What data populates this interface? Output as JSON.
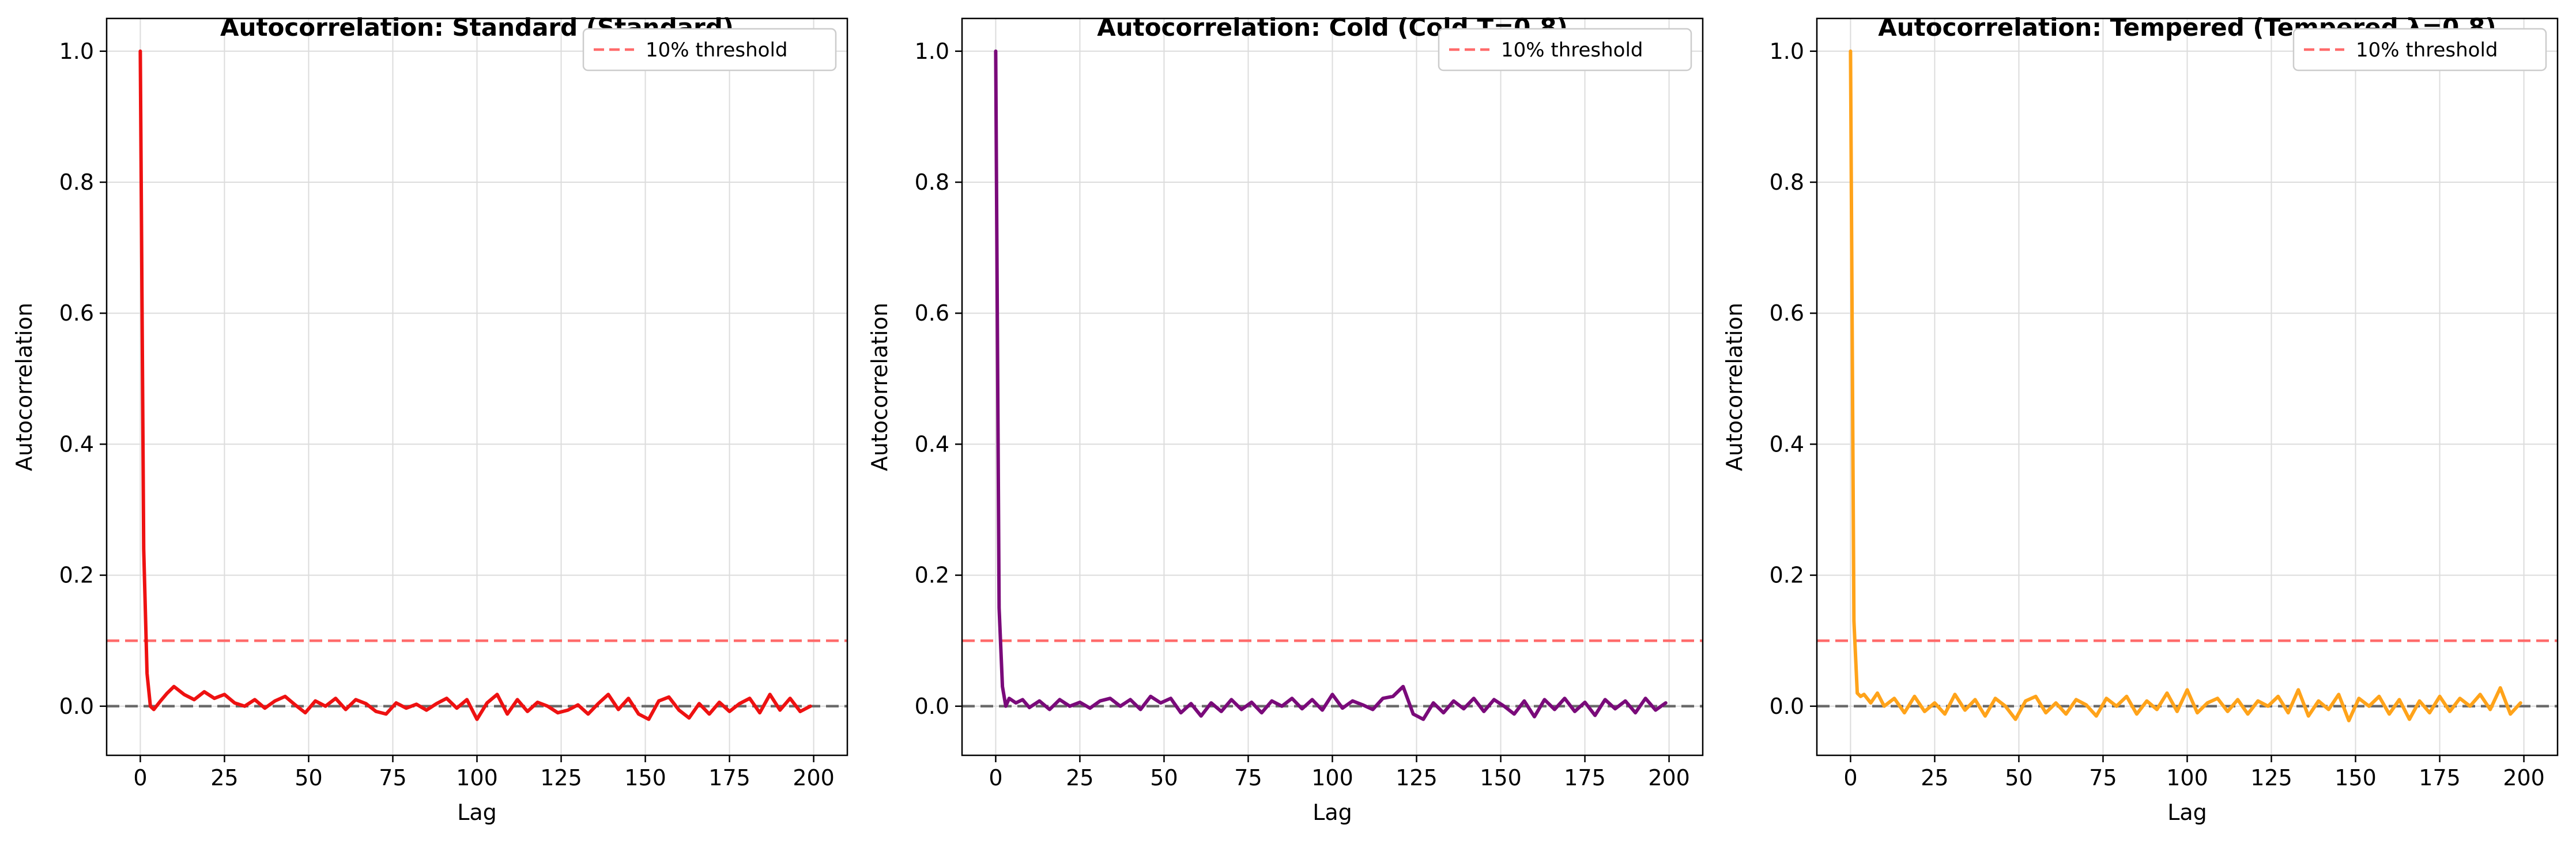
{
  "chart_data": [
    {
      "type": "line",
      "title": "Autocorrelation: Standard (Standard)",
      "xlabel": "Lag",
      "ylabel": "Autocorrelation",
      "xlim": [
        -10,
        210
      ],
      "ylim": [
        -0.075,
        1.05
      ],
      "xticks": [
        0,
        25,
        50,
        75,
        100,
        125,
        150,
        175,
        200
      ],
      "yticks": [
        0.0,
        0.2,
        0.4,
        0.6,
        0.8,
        1.0
      ],
      "xtick_labels": [
        "0",
        "25",
        "50",
        "75",
        "100",
        "125",
        "150",
        "175",
        "200"
      ],
      "ytick_labels": [
        "0.0",
        "0.2",
        "0.4",
        "0.6",
        "0.8",
        "1.0"
      ],
      "grid": true,
      "legend": {
        "position": "top-right",
        "entries": [
          {
            "name": "10% threshold",
            "color": "#ff6b6b",
            "style": "dashed"
          }
        ]
      },
      "threshold": 0.1,
      "zero_line": 0.0,
      "series": [
        {
          "color": "#ee1111",
          "x": [
            0,
            1,
            2,
            3,
            4,
            6,
            8,
            10,
            13,
            16,
            19,
            22,
            25,
            28,
            31,
            34,
            37,
            40,
            43,
            46,
            49,
            52,
            55,
            58,
            61,
            64,
            67,
            70,
            73,
            76,
            79,
            82,
            85,
            88,
            91,
            94,
            97,
            100,
            103,
            106,
            109,
            112,
            115,
            118,
            121,
            124,
            127,
            130,
            133,
            136,
            139,
            142,
            145,
            148,
            151,
            154,
            157,
            160,
            163,
            166,
            169,
            172,
            175,
            178,
            181,
            184,
            187,
            190,
            193,
            196,
            199
          ],
          "values": [
            1.0,
            0.24,
            0.05,
            0.0,
            -0.005,
            0.008,
            0.02,
            0.03,
            0.018,
            0.01,
            0.022,
            0.012,
            0.018,
            0.005,
            0.0,
            0.01,
            -0.003,
            0.008,
            0.015,
            0.002,
            -0.01,
            0.008,
            0.0,
            0.012,
            -0.005,
            0.01,
            0.004,
            -0.008,
            -0.012,
            0.005,
            -0.003,
            0.003,
            -0.006,
            0.004,
            0.012,
            -0.003,
            0.01,
            -0.02,
            0.005,
            0.018,
            -0.012,
            0.01,
            -0.008,
            0.006,
            0.0,
            -0.01,
            -0.006,
            0.002,
            -0.012,
            0.004,
            0.018,
            -0.005,
            0.012,
            -0.012,
            -0.02,
            0.008,
            0.014,
            -0.006,
            -0.018,
            0.004,
            -0.012,
            0.006,
            -0.008,
            0.004,
            0.012,
            -0.01,
            0.018,
            -0.006,
            0.012,
            -0.008,
            0.0
          ]
        }
      ]
    },
    {
      "type": "line",
      "title": "Autocorrelation: Cold (Cold T=0.8)",
      "xlabel": "Lag",
      "ylabel": "Autocorrelation",
      "xlim": [
        -10,
        210
      ],
      "ylim": [
        -0.075,
        1.05
      ],
      "xticks": [
        0,
        25,
        50,
        75,
        100,
        125,
        150,
        175,
        200
      ],
      "yticks": [
        0.0,
        0.2,
        0.4,
        0.6,
        0.8,
        1.0
      ],
      "xtick_labels": [
        "0",
        "25",
        "50",
        "75",
        "100",
        "125",
        "150",
        "175",
        "200"
      ],
      "ytick_labels": [
        "0.0",
        "0.2",
        "0.4",
        "0.6",
        "0.8",
        "1.0"
      ],
      "grid": true,
      "legend": {
        "position": "top-right",
        "entries": [
          {
            "name": "10% threshold",
            "color": "#ff6b6b",
            "style": "dashed"
          }
        ]
      },
      "threshold": 0.1,
      "zero_line": 0.0,
      "series": [
        {
          "color": "#7a0a7a",
          "x": [
            0,
            1,
            2,
            3,
            4,
            6,
            8,
            10,
            13,
            16,
            19,
            22,
            25,
            28,
            31,
            34,
            37,
            40,
            43,
            46,
            49,
            52,
            55,
            58,
            61,
            64,
            67,
            70,
            73,
            76,
            79,
            82,
            85,
            88,
            91,
            94,
            97,
            100,
            103,
            106,
            109,
            112,
            115,
            118,
            121,
            124,
            127,
            130,
            133,
            136,
            139,
            142,
            145,
            148,
            151,
            154,
            157,
            160,
            163,
            166,
            169,
            172,
            175,
            178,
            181,
            184,
            187,
            190,
            193,
            196,
            199
          ],
          "values": [
            1.0,
            0.15,
            0.03,
            0.0,
            0.012,
            0.005,
            0.01,
            -0.002,
            0.008,
            -0.005,
            0.01,
            0.0,
            0.006,
            -0.003,
            0.008,
            0.012,
            0.0,
            0.01,
            -0.005,
            0.015,
            0.005,
            0.012,
            -0.01,
            0.004,
            -0.015,
            0.005,
            -0.008,
            0.01,
            -0.005,
            0.006,
            -0.01,
            0.008,
            0.0,
            0.012,
            -0.004,
            0.01,
            -0.006,
            0.018,
            -0.003,
            0.008,
            0.002,
            -0.005,
            0.012,
            0.015,
            0.03,
            -0.012,
            -0.02,
            0.005,
            -0.01,
            0.008,
            -0.004,
            0.012,
            -0.008,
            0.01,
            0.0,
            -0.012,
            0.008,
            -0.016,
            0.01,
            -0.005,
            0.012,
            -0.008,
            0.006,
            -0.014,
            0.01,
            -0.004,
            0.008,
            -0.01,
            0.012,
            -0.006,
            0.005
          ]
        }
      ]
    },
    {
      "type": "line",
      "title": "Autocorrelation: Tempered (Tempered λ=0.8)",
      "xlabel": "Lag",
      "ylabel": "Autocorrelation",
      "xlim": [
        -10,
        210
      ],
      "ylim": [
        -0.075,
        1.05
      ],
      "xticks": [
        0,
        25,
        50,
        75,
        100,
        125,
        150,
        175,
        200
      ],
      "yticks": [
        0.0,
        0.2,
        0.4,
        0.6,
        0.8,
        1.0
      ],
      "xtick_labels": [
        "0",
        "25",
        "50",
        "75",
        "100",
        "125",
        "150",
        "175",
        "200"
      ],
      "ytick_labels": [
        "0.0",
        "0.2",
        "0.4",
        "0.6",
        "0.8",
        "1.0"
      ],
      "grid": true,
      "legend": {
        "position": "top-right",
        "entries": [
          {
            "name": "10% threshold",
            "color": "#ff6b6b",
            "style": "dashed"
          }
        ]
      },
      "threshold": 0.1,
      "zero_line": 0.0,
      "series": [
        {
          "color": "#ffa31a",
          "x": [
            0,
            1,
            2,
            3,
            4,
            6,
            8,
            10,
            13,
            16,
            19,
            22,
            25,
            28,
            31,
            34,
            37,
            40,
            43,
            46,
            49,
            52,
            55,
            58,
            61,
            64,
            67,
            70,
            73,
            76,
            79,
            82,
            85,
            88,
            91,
            94,
            97,
            100,
            103,
            106,
            109,
            112,
            115,
            118,
            121,
            124,
            127,
            130,
            133,
            136,
            139,
            142,
            145,
            148,
            151,
            154,
            157,
            160,
            163,
            166,
            169,
            172,
            175,
            178,
            181,
            184,
            187,
            190,
            193,
            196,
            199
          ],
          "values": [
            1.0,
            0.13,
            0.02,
            0.015,
            0.018,
            0.005,
            0.02,
            0.0,
            0.012,
            -0.01,
            0.015,
            -0.008,
            0.005,
            -0.012,
            0.018,
            -0.006,
            0.01,
            -0.015,
            0.012,
            0.0,
            -0.02,
            0.008,
            0.015,
            -0.01,
            0.005,
            -0.012,
            0.01,
            0.002,
            -0.015,
            0.012,
            0.0,
            0.015,
            -0.012,
            0.008,
            -0.005,
            0.02,
            -0.008,
            0.025,
            -0.01,
            0.005,
            0.012,
            -0.008,
            0.01,
            -0.012,
            0.008,
            0.0,
            0.015,
            -0.01,
            0.025,
            -0.015,
            0.008,
            -0.005,
            0.018,
            -0.022,
            0.012,
            0.0,
            0.015,
            -0.012,
            0.01,
            -0.02,
            0.008,
            -0.01,
            0.015,
            -0.008,
            0.012,
            0.0,
            0.018,
            -0.005,
            0.028,
            -0.012,
            0.005
          ]
        }
      ]
    }
  ]
}
